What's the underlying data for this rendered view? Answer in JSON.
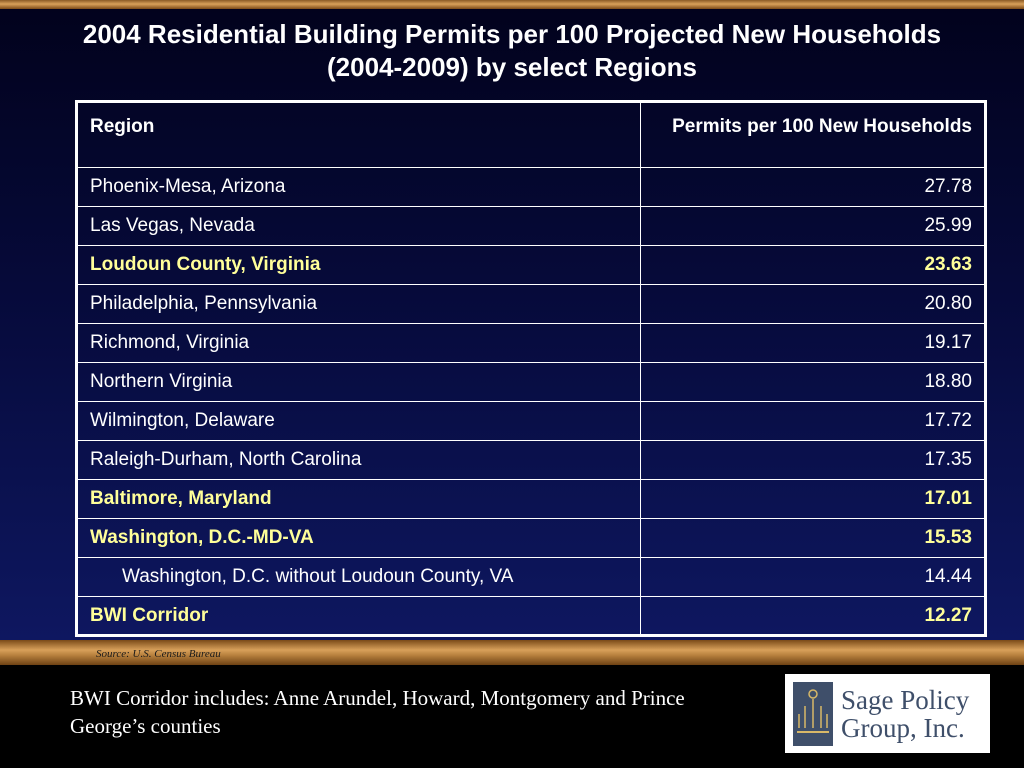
{
  "title": "2004 Residential Building Permits per 100 Projected New Households (2004-2009) by select Regions",
  "table": {
    "headers": {
      "region": "Region",
      "permits": "Permits per 100 New Households"
    },
    "rows": [
      {
        "region": "Phoenix-Mesa, Arizona",
        "value": "27.78",
        "highlight": false,
        "indent": false
      },
      {
        "region": "Las Vegas, Nevada",
        "value": "25.99",
        "highlight": false,
        "indent": false
      },
      {
        "region": "Loudoun County, Virginia",
        "value": "23.63",
        "highlight": true,
        "indent": false
      },
      {
        "region": "Philadelphia, Pennsylvania",
        "value": "20.80",
        "highlight": false,
        "indent": false
      },
      {
        "region": "Richmond, Virginia",
        "value": "19.17",
        "highlight": false,
        "indent": false
      },
      {
        "region": "Northern Virginia",
        "value": "18.80",
        "highlight": false,
        "indent": false
      },
      {
        "region": "Wilmington, Delaware",
        "value": "17.72",
        "highlight": false,
        "indent": false
      },
      {
        "region": "Raleigh-Durham, North Carolina",
        "value": "17.35",
        "highlight": false,
        "indent": false
      },
      {
        "region": "Baltimore, Maryland",
        "value": "17.01",
        "highlight": true,
        "indent": false
      },
      {
        "region": "Washington, D.C.-MD-VA",
        "value": "15.53",
        "highlight": true,
        "indent": false
      },
      {
        "region": "Washington, D.C. without Loudoun County, VA",
        "value": "14.44",
        "highlight": false,
        "indent": true
      },
      {
        "region": "BWI Corridor",
        "value": "12.27",
        "highlight": true,
        "indent": false
      }
    ]
  },
  "source": "Source: U.S. Census Bureau",
  "footnote": "BWI Corridor includes: Anne Arundel, Howard, Montgomery and Prince George’s counties",
  "logo": {
    "line1": "Sage Policy",
    "line2": "Group, Inc.",
    "icon": "sage-logo-mark-icon"
  },
  "colors": {
    "background_top": "#02021c",
    "background_bottom": "#0e1760",
    "accent_bar": "#d8a05a",
    "highlight_text": "#ffff99",
    "text": "#ffffff",
    "logo_text": "#3f4f6a"
  }
}
